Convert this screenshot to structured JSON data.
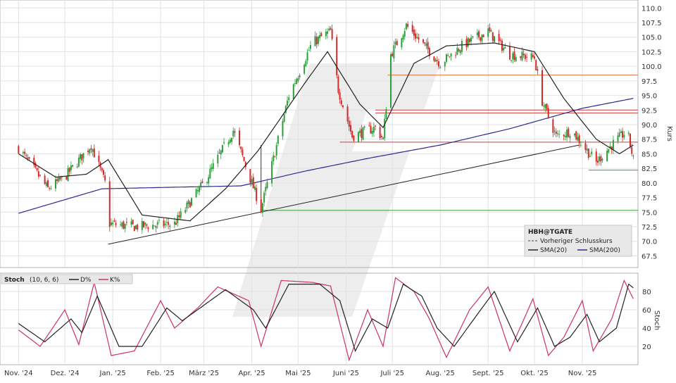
{
  "chart_data": [
    {
      "type": "candlestick",
      "symbol": "HBH@TGATE",
      "ylabel": "Kurs",
      "ylim": [
        65.5,
        111
      ],
      "yticks": [
        110.0,
        107.5,
        105.0,
        102.5,
        100.0,
        97.5,
        95.0,
        92.5,
        90.0,
        87.5,
        85.0,
        82.5,
        80.0,
        77.5,
        75.0,
        72.5,
        70.0,
        67.5
      ],
      "x_tick_labels": [
        "Nov. '24",
        "Dez. '24",
        "Jan. '25",
        "Feb. '25",
        "März '25",
        "Apr. '25",
        "Mai '25",
        "Juni '25",
        "Juli '25",
        "Aug. '25",
        "Sept. '25",
        "Okt. '25",
        "Nov. '25"
      ],
      "legend": {
        "title": "HBH@TGATE",
        "entries": [
          "Vorheriger Schlusskurs",
          "SMA(20)",
          "SMA(200)"
        ],
        "colors": [
          "#444444",
          "#222222",
          "#2a2a8c"
        ]
      },
      "key_points": [
        {
          "date": "2024-11-01",
          "close": 86.0
        },
        {
          "date": "2024-11-20",
          "close": 79.0
        },
        {
          "date": "2024-12-01",
          "close": 81.0
        },
        {
          "date": "2024-12-18",
          "close": 86.5
        },
        {
          "date": "2024-12-27",
          "close": 80.0
        },
        {
          "date": "2024-12-30",
          "close": 73.0
        },
        {
          "date": "2025-01-15",
          "close": 72.5
        },
        {
          "date": "2025-02-10",
          "close": 73.0
        },
        {
          "date": "2025-03-01",
          "close": 80.0
        },
        {
          "date": "2025-03-20",
          "close": 89.0
        },
        {
          "date": "2025-04-07",
          "close": 75.5
        },
        {
          "date": "2025-04-25",
          "close": 95.0
        },
        {
          "date": "2025-05-10",
          "close": 104.0
        },
        {
          "date": "2025-05-22",
          "close": 106.0
        },
        {
          "date": "2025-05-27",
          "close": 96.0
        },
        {
          "date": "2025-06-05",
          "close": 88.0
        },
        {
          "date": "2025-06-20",
          "close": 89.5
        },
        {
          "date": "2025-06-25",
          "close": 87.5
        },
        {
          "date": "2025-06-30",
          "close": 102.0
        },
        {
          "date": "2025-07-10",
          "close": 107.0
        },
        {
          "date": "2025-07-20",
          "close": 104.0
        },
        {
          "date": "2025-08-01",
          "close": 100.5
        },
        {
          "date": "2025-08-15",
          "close": 103.5
        },
        {
          "date": "2025-09-01",
          "close": 106.0
        },
        {
          "date": "2025-09-15",
          "close": 102.0
        },
        {
          "date": "2025-10-01",
          "close": 101.5
        },
        {
          "date": "2025-10-06",
          "close": 94.0
        },
        {
          "date": "2025-10-15",
          "close": 88.0
        },
        {
          "date": "2025-10-25",
          "close": 89.0
        },
        {
          "date": "2025-11-10",
          "close": 83.5
        },
        {
          "date": "2025-11-20",
          "close": 86.5
        },
        {
          "date": "2025-11-30",
          "close": 89.0
        },
        {
          "date": "2025-12-04",
          "close": 84.0
        }
      ],
      "sma20_points": [
        {
          "date": "2024-11-01",
          "value": 85.0
        },
        {
          "date": "2024-11-25",
          "value": 81.0
        },
        {
          "date": "2024-12-15",
          "value": 81.5
        },
        {
          "date": "2024-12-29",
          "value": 84.0
        },
        {
          "date": "2025-01-20",
          "value": 74.5
        },
        {
          "date": "2025-02-20",
          "value": 73.5
        },
        {
          "date": "2025-03-15",
          "value": 79.0
        },
        {
          "date": "2025-04-05",
          "value": 85.5
        },
        {
          "date": "2025-05-05",
          "value": 97.0
        },
        {
          "date": "2025-05-20",
          "value": 102.5
        },
        {
          "date": "2025-06-10",
          "value": 93.5
        },
        {
          "date": "2025-06-25",
          "value": 89.5
        },
        {
          "date": "2025-07-15",
          "value": 100.5
        },
        {
          "date": "2025-08-05",
          "value": 103.5
        },
        {
          "date": "2025-09-05",
          "value": 104.0
        },
        {
          "date": "2025-10-01",
          "value": 102.5
        },
        {
          "date": "2025-10-20",
          "value": 94.5
        },
        {
          "date": "2025-11-10",
          "value": 87.5
        },
        {
          "date": "2025-11-25",
          "value": 85.0
        },
        {
          "date": "2025-12-04",
          "value": 86.5
        }
      ],
      "sma200_points": [
        {
          "date": "2024-11-01",
          "value": 74.8
        },
        {
          "date": "2024-12-25",
          "value": 79.0
        },
        {
          "date": "2025-02-15",
          "value": 79.3
        },
        {
          "date": "2025-03-25",
          "value": 79.5
        },
        {
          "date": "2025-05-05",
          "value": 82.0
        },
        {
          "date": "2025-06-15",
          "value": 84.2
        },
        {
          "date": "2025-08-01",
          "value": 86.5
        },
        {
          "date": "2025-09-15",
          "value": 89.3
        },
        {
          "date": "2025-11-01",
          "value": 92.8
        },
        {
          "date": "2025-12-04",
          "value": 94.5
        }
      ],
      "trendlines": [
        {
          "color": "#222222",
          "from": {
            "date": "2024-12-29",
            "value": 69.5
          },
          "to": {
            "date": "2025-10-30",
            "value": 86.5
          }
        }
      ],
      "horizontal_levels": [
        {
          "value": 98.5,
          "color": "#e07040",
          "from": "2025-06-28"
        },
        {
          "value": 92.5,
          "color": "#d23a3a",
          "from": "2025-06-20"
        },
        {
          "value": 92.0,
          "color": "#d23a3a",
          "from": "2025-06-20"
        },
        {
          "value": 87.0,
          "color": "#d23a3a",
          "from": "2025-05-28"
        },
        {
          "value": 82.2,
          "color": "#3aa23a",
          "from": "2025-11-05"
        },
        {
          "value": 75.3,
          "color": "#3aa23a",
          "from": "2025-04-07"
        }
      ]
    },
    {
      "type": "line",
      "title": "Stoch",
      "params": "(10, 6, 6)",
      "ylabel": "Stoch",
      "ylim": [
        0,
        100
      ],
      "yticks": [
        80,
        60,
        40,
        20
      ],
      "legend": {
        "entries": [
          "D%",
          "K%"
        ],
        "colors": [
          "#222222",
          "#cc3366"
        ]
      },
      "k_points": [
        {
          "date": "2024-11-01",
          "value": 38
        },
        {
          "date": "2024-11-15",
          "value": 20
        },
        {
          "date": "2024-12-01",
          "value": 60
        },
        {
          "date": "2024-12-10",
          "value": 22
        },
        {
          "date": "2024-12-20",
          "value": 90
        },
        {
          "date": "2024-12-31",
          "value": 10
        },
        {
          "date": "2025-01-15",
          "value": 15
        },
        {
          "date": "2025-02-01",
          "value": 70
        },
        {
          "date": "2025-02-10",
          "value": 40
        },
        {
          "date": "2025-02-25",
          "value": 62
        },
        {
          "date": "2025-03-10",
          "value": 85
        },
        {
          "date": "2025-03-30",
          "value": 70
        },
        {
          "date": "2025-04-07",
          "value": 20
        },
        {
          "date": "2025-04-20",
          "value": 92
        },
        {
          "date": "2025-05-10",
          "value": 90
        },
        {
          "date": "2025-05-22",
          "value": 86
        },
        {
          "date": "2025-06-03",
          "value": 5
        },
        {
          "date": "2025-06-15",
          "value": 60
        },
        {
          "date": "2025-06-25",
          "value": 20
        },
        {
          "date": "2025-07-03",
          "value": 95
        },
        {
          "date": "2025-07-15",
          "value": 80
        },
        {
          "date": "2025-07-25",
          "value": 50
        },
        {
          "date": "2025-08-05",
          "value": 8
        },
        {
          "date": "2025-08-20",
          "value": 60
        },
        {
          "date": "2025-09-01",
          "value": 85
        },
        {
          "date": "2025-09-15",
          "value": 15
        },
        {
          "date": "2025-09-30",
          "value": 72
        },
        {
          "date": "2025-10-10",
          "value": 10
        },
        {
          "date": "2025-10-20",
          "value": 30
        },
        {
          "date": "2025-11-01",
          "value": 70
        },
        {
          "date": "2025-11-08",
          "value": 15
        },
        {
          "date": "2025-11-20",
          "value": 50
        },
        {
          "date": "2025-11-28",
          "value": 92
        },
        {
          "date": "2025-12-04",
          "value": 72
        }
      ],
      "d_points": [
        {
          "date": "2024-11-01",
          "value": 45
        },
        {
          "date": "2024-11-18",
          "value": 25
        },
        {
          "date": "2024-12-05",
          "value": 50
        },
        {
          "date": "2024-12-12",
          "value": 35
        },
        {
          "date": "2024-12-22",
          "value": 75
        },
        {
          "date": "2025-01-05",
          "value": 20
        },
        {
          "date": "2025-01-20",
          "value": 20
        },
        {
          "date": "2025-02-05",
          "value": 62
        },
        {
          "date": "2025-02-15",
          "value": 48
        },
        {
          "date": "2025-03-01",
          "value": 65
        },
        {
          "date": "2025-03-15",
          "value": 82
        },
        {
          "date": "2025-04-02",
          "value": 60
        },
        {
          "date": "2025-04-10",
          "value": 40
        },
        {
          "date": "2025-04-25",
          "value": 88
        },
        {
          "date": "2025-05-15",
          "value": 88
        },
        {
          "date": "2025-05-28",
          "value": 70
        },
        {
          "date": "2025-06-07",
          "value": 15
        },
        {
          "date": "2025-06-18",
          "value": 50
        },
        {
          "date": "2025-06-28",
          "value": 40
        },
        {
          "date": "2025-07-08",
          "value": 88
        },
        {
          "date": "2025-07-20",
          "value": 75
        },
        {
          "date": "2025-07-30",
          "value": 40
        },
        {
          "date": "2025-08-10",
          "value": 20
        },
        {
          "date": "2025-08-25",
          "value": 55
        },
        {
          "date": "2025-09-05",
          "value": 80
        },
        {
          "date": "2025-09-20",
          "value": 25
        },
        {
          "date": "2025-10-03",
          "value": 62
        },
        {
          "date": "2025-10-14",
          "value": 20
        },
        {
          "date": "2025-10-24",
          "value": 30
        },
        {
          "date": "2025-11-04",
          "value": 55
        },
        {
          "date": "2025-11-12",
          "value": 25
        },
        {
          "date": "2025-11-23",
          "value": 40
        },
        {
          "date": "2025-12-01",
          "value": 88
        },
        {
          "date": "2025-12-04",
          "value": 84
        }
      ]
    }
  ]
}
